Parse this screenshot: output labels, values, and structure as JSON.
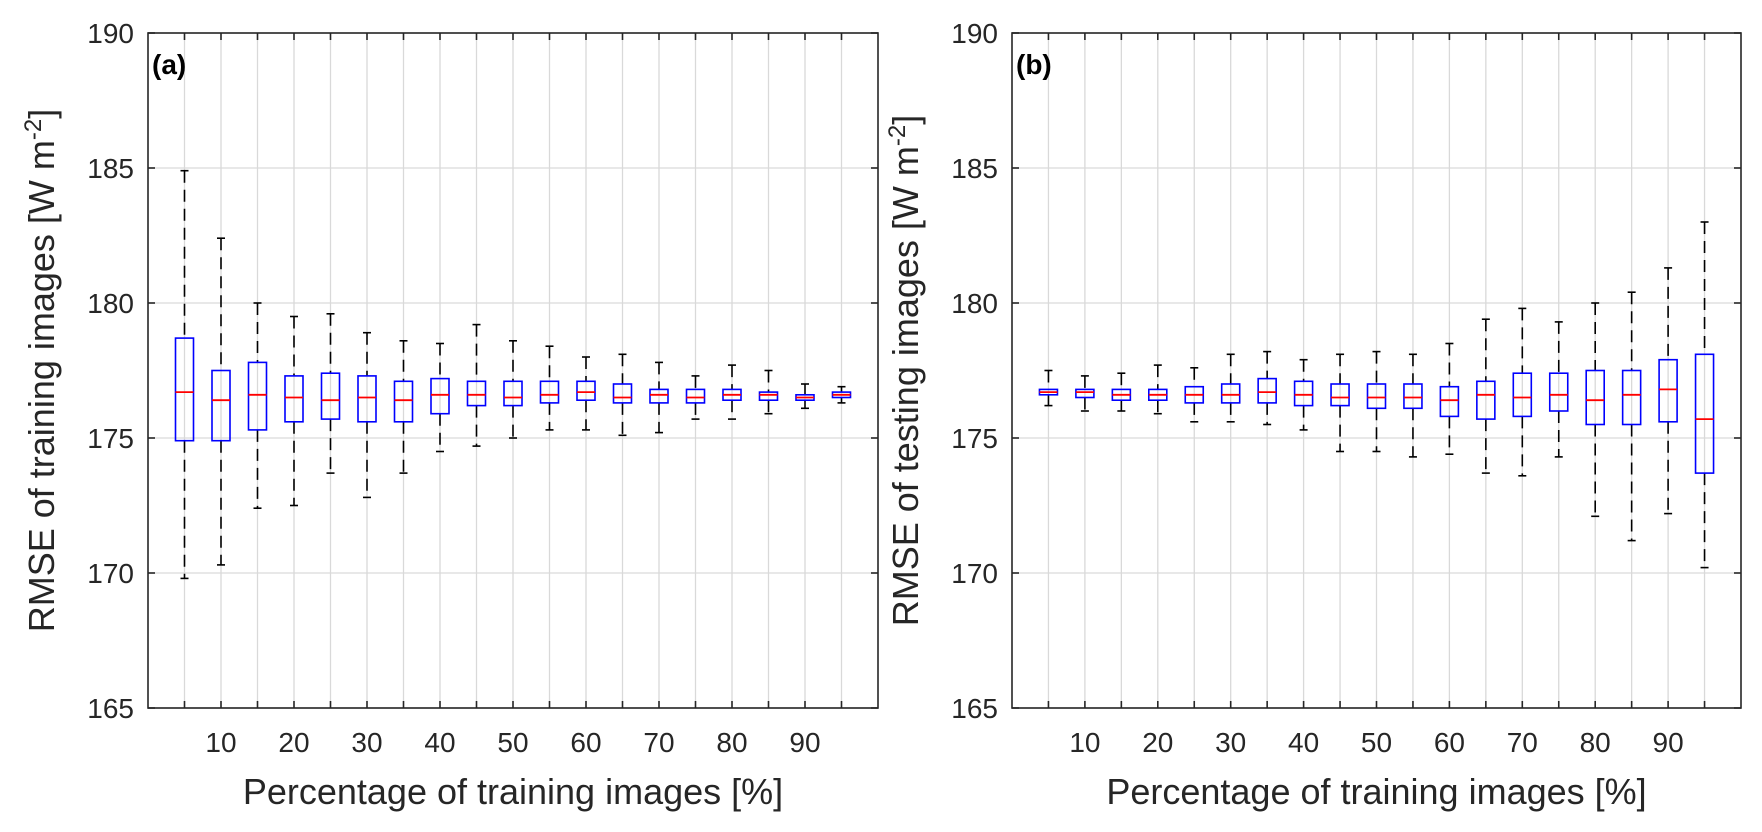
{
  "colors": {
    "box": "#0000ff",
    "median": "#ff0000",
    "whisker": "#000000",
    "grid": "#d9d9d9",
    "axis": "#262626"
  },
  "chart_data": [
    {
      "type": "box",
      "panel_label": "(a)",
      "xlabel": "Percentage of training images [%]",
      "ylabel_main": "RMSE of training images [W m",
      "ylabel_exp": "-2",
      "ylabel_end": "]",
      "ylim": [
        165,
        190
      ],
      "yticks": [
        165,
        170,
        175,
        180,
        185,
        190
      ],
      "xlim": [
        0,
        100
      ],
      "xticks": [
        10,
        20,
        30,
        40,
        50,
        60,
        70,
        80,
        90
      ],
      "grid": true,
      "boxes": [
        {
          "x": 5,
          "lower": 169.8,
          "q1": 174.9,
          "median": 176.7,
          "q3": 178.7,
          "upper": 184.9
        },
        {
          "x": 10,
          "lower": 170.3,
          "q1": 174.9,
          "median": 176.4,
          "q3": 177.5,
          "upper": 182.4
        },
        {
          "x": 15,
          "lower": 172.4,
          "q1": 175.3,
          "median": 176.6,
          "q3": 177.8,
          "upper": 180.0
        },
        {
          "x": 20,
          "lower": 172.5,
          "q1": 175.6,
          "median": 176.5,
          "q3": 177.3,
          "upper": 179.5
        },
        {
          "x": 25,
          "lower": 173.7,
          "q1": 175.7,
          "median": 176.4,
          "q3": 177.4,
          "upper": 179.6
        },
        {
          "x": 30,
          "lower": 172.8,
          "q1": 175.6,
          "median": 176.5,
          "q3": 177.3,
          "upper": 178.9
        },
        {
          "x": 35,
          "lower": 173.7,
          "q1": 175.6,
          "median": 176.4,
          "q3": 177.1,
          "upper": 178.6
        },
        {
          "x": 40,
          "lower": 174.5,
          "q1": 175.9,
          "median": 176.6,
          "q3": 177.2,
          "upper": 178.5
        },
        {
          "x": 45,
          "lower": 174.7,
          "q1": 176.2,
          "median": 176.6,
          "q3": 177.1,
          "upper": 179.2
        },
        {
          "x": 50,
          "lower": 175.0,
          "q1": 176.2,
          "median": 176.5,
          "q3": 177.1,
          "upper": 178.6
        },
        {
          "x": 55,
          "lower": 175.3,
          "q1": 176.3,
          "median": 176.6,
          "q3": 177.1,
          "upper": 178.4
        },
        {
          "x": 60,
          "lower": 175.3,
          "q1": 176.4,
          "median": 176.7,
          "q3": 177.1,
          "upper": 178.0
        },
        {
          "x": 65,
          "lower": 175.1,
          "q1": 176.3,
          "median": 176.5,
          "q3": 177.0,
          "upper": 178.1
        },
        {
          "x": 70,
          "lower": 175.2,
          "q1": 176.3,
          "median": 176.6,
          "q3": 176.8,
          "upper": 177.8
        },
        {
          "x": 75,
          "lower": 175.7,
          "q1": 176.3,
          "median": 176.5,
          "q3": 176.8,
          "upper": 177.3
        },
        {
          "x": 80,
          "lower": 175.7,
          "q1": 176.4,
          "median": 176.6,
          "q3": 176.8,
          "upper": 177.7
        },
        {
          "x": 85,
          "lower": 175.9,
          "q1": 176.4,
          "median": 176.6,
          "q3": 176.7,
          "upper": 177.5
        },
        {
          "x": 90,
          "lower": 176.1,
          "q1": 176.4,
          "median": 176.5,
          "q3": 176.6,
          "upper": 177.0
        },
        {
          "x": 95,
          "lower": 176.3,
          "q1": 176.5,
          "median": 176.6,
          "q3": 176.7,
          "upper": 176.9
        }
      ]
    },
    {
      "type": "box",
      "panel_label": "(b)",
      "xlabel": "Percentage of training images [%]",
      "ylabel_main": "RMSE of testing images [W m",
      "ylabel_exp": "-2",
      "ylabel_end": "]",
      "ylim": [
        165,
        190
      ],
      "yticks": [
        165,
        170,
        175,
        180,
        185,
        190
      ],
      "xlim": [
        0,
        100
      ],
      "xticks": [
        10,
        20,
        30,
        40,
        50,
        60,
        70,
        80,
        90
      ],
      "grid": true,
      "boxes": [
        {
          "x": 5,
          "lower": 176.2,
          "q1": 176.6,
          "median": 176.7,
          "q3": 176.8,
          "upper": 177.5
        },
        {
          "x": 10,
          "lower": 176.0,
          "q1": 176.5,
          "median": 176.7,
          "q3": 176.8,
          "upper": 177.3
        },
        {
          "x": 15,
          "lower": 176.0,
          "q1": 176.4,
          "median": 176.6,
          "q3": 176.8,
          "upper": 177.4
        },
        {
          "x": 20,
          "lower": 175.9,
          "q1": 176.4,
          "median": 176.6,
          "q3": 176.8,
          "upper": 177.7
        },
        {
          "x": 25,
          "lower": 175.6,
          "q1": 176.3,
          "median": 176.6,
          "q3": 176.9,
          "upper": 177.6
        },
        {
          "x": 30,
          "lower": 175.6,
          "q1": 176.3,
          "median": 176.6,
          "q3": 177.0,
          "upper": 178.1
        },
        {
          "x": 35,
          "lower": 175.5,
          "q1": 176.3,
          "median": 176.7,
          "q3": 177.2,
          "upper": 178.2
        },
        {
          "x": 40,
          "lower": 175.3,
          "q1": 176.2,
          "median": 176.6,
          "q3": 177.1,
          "upper": 177.9
        },
        {
          "x": 45,
          "lower": 174.5,
          "q1": 176.2,
          "median": 176.5,
          "q3": 177.0,
          "upper": 178.1
        },
        {
          "x": 50,
          "lower": 174.5,
          "q1": 176.1,
          "median": 176.5,
          "q3": 177.0,
          "upper": 178.2
        },
        {
          "x": 55,
          "lower": 174.3,
          "q1": 176.1,
          "median": 176.5,
          "q3": 177.0,
          "upper": 178.1
        },
        {
          "x": 60,
          "lower": 174.4,
          "q1": 175.8,
          "median": 176.4,
          "q3": 176.9,
          "upper": 178.5
        },
        {
          "x": 65,
          "lower": 173.7,
          "q1": 175.7,
          "median": 176.6,
          "q3": 177.1,
          "upper": 179.4
        },
        {
          "x": 70,
          "lower": 173.6,
          "q1": 175.8,
          "median": 176.5,
          "q3": 177.4,
          "upper": 179.8
        },
        {
          "x": 75,
          "lower": 174.3,
          "q1": 176.0,
          "median": 176.6,
          "q3": 177.4,
          "upper": 179.3
        },
        {
          "x": 80,
          "lower": 172.1,
          "q1": 175.5,
          "median": 176.4,
          "q3": 177.5,
          "upper": 180.0
        },
        {
          "x": 85,
          "lower": 171.2,
          "q1": 175.5,
          "median": 176.6,
          "q3": 177.5,
          "upper": 180.4
        },
        {
          "x": 90,
          "lower": 172.2,
          "q1": 175.6,
          "median": 176.8,
          "q3": 177.9,
          "upper": 181.3
        },
        {
          "x": 95,
          "lower": 170.2,
          "q1": 173.7,
          "median": 175.7,
          "q3": 178.1,
          "upper": 183.0
        }
      ]
    }
  ]
}
